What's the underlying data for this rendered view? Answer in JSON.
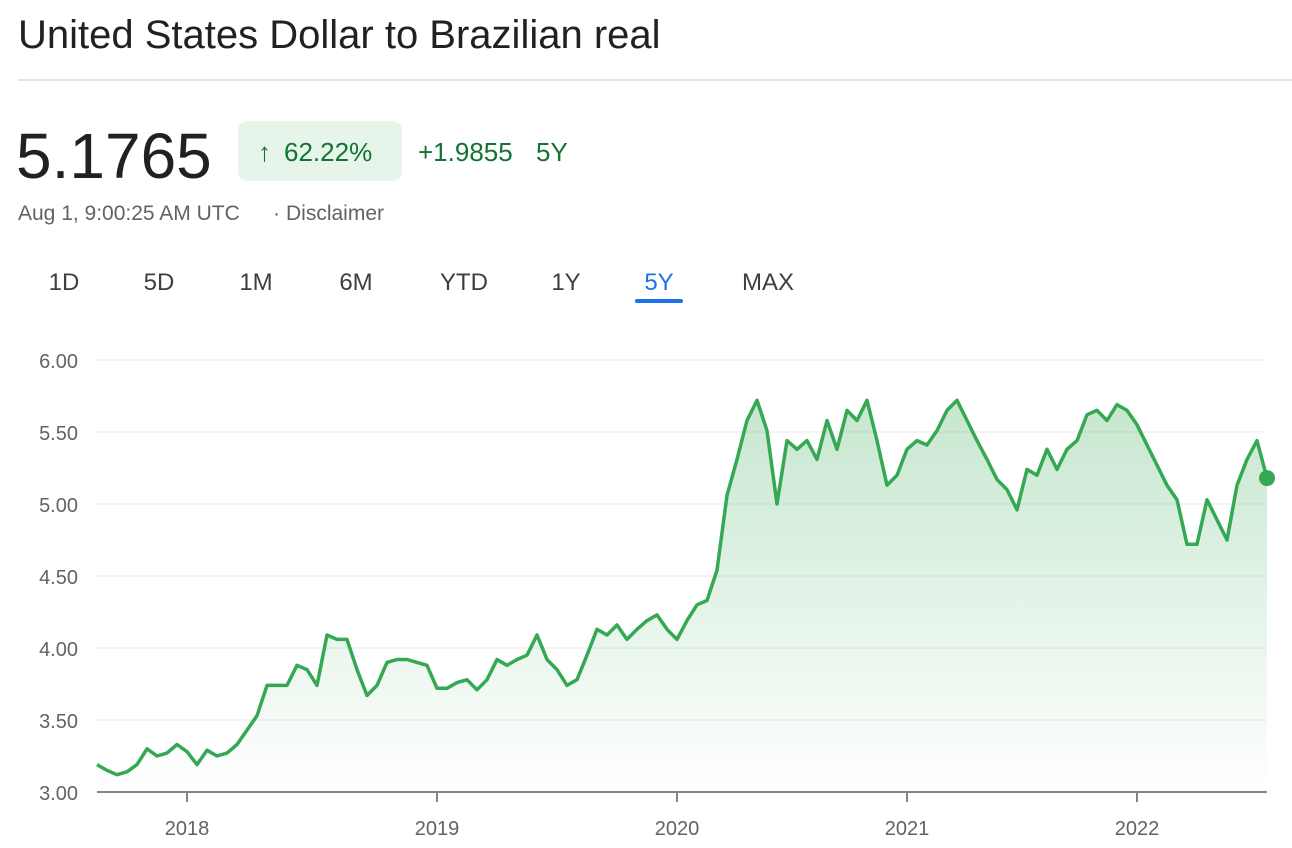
{
  "header": {
    "title": "United States Dollar to Brazilian real",
    "price": "5.1765",
    "change_percent": "62.22%",
    "change_value": "+1.9855",
    "change_period": "5Y",
    "timestamp": "Aug 1, 9:00:25 AM UTC",
    "disclaimer": "Disclaimer"
  },
  "tabs": {
    "items": [
      "1D",
      "5D",
      "1M",
      "6M",
      "YTD",
      "1Y",
      "5Y",
      "MAX"
    ],
    "active": 6
  },
  "chart_data": {
    "type": "line",
    "color": "#34a853",
    "grid": true,
    "categories": [
      null,
      null,
      null,
      null,
      null,
      null,
      null,
      null,
      null,
      "2018",
      null,
      null,
      null,
      null,
      null,
      null,
      null,
      null,
      null,
      null,
      null,
      null,
      null,
      null,
      null,
      null,
      null,
      null,
      null,
      null,
      null,
      null,
      null,
      null,
      "2019",
      null,
      null,
      null,
      null,
      null,
      null,
      null,
      null,
      null,
      null,
      null,
      null,
      null,
      null,
      null,
      null,
      null,
      null,
      null,
      null,
      null,
      null,
      null,
      "2020",
      null,
      null,
      null,
      null,
      null,
      null,
      null,
      null,
      null,
      null,
      null,
      null,
      null,
      null,
      null,
      null,
      null,
      null,
      null,
      null,
      null,
      null,
      "2021",
      null,
      null,
      null,
      null,
      null,
      null,
      null,
      null,
      null,
      null,
      null,
      null,
      null,
      null,
      null,
      null,
      null,
      null,
      null,
      null,
      null,
      null,
      "2022",
      null,
      null,
      null,
      null,
      null,
      null,
      null,
      null,
      null,
      null,
      null,
      null,
      null
    ],
    "values": [
      3.19,
      3.15,
      3.12,
      3.14,
      3.19,
      3.3,
      3.25,
      3.27,
      3.33,
      3.28,
      3.19,
      3.29,
      3.25,
      3.27,
      3.33,
      3.43,
      3.53,
      3.74,
      3.74,
      3.74,
      3.88,
      3.85,
      3.74,
      4.09,
      4.06,
      4.06,
      3.85,
      3.67,
      3.74,
      3.9,
      3.92,
      3.92,
      3.9,
      3.88,
      3.72,
      3.72,
      3.76,
      3.78,
      3.71,
      3.78,
      3.92,
      3.88,
      3.92,
      3.95,
      4.09,
      3.92,
      3.85,
      3.74,
      3.78,
      3.95,
      4.13,
      4.09,
      4.16,
      4.06,
      4.13,
      4.19,
      4.23,
      4.13,
      4.06,
      4.19,
      4.3,
      4.33,
      4.54,
      5.06,
      5.31,
      5.58,
      5.72,
      5.51,
      5.0,
      5.44,
      5.38,
      5.44,
      5.31,
      5.58,
      5.38,
      5.65,
      5.58,
      5.72,
      5.44,
      5.13,
      5.2,
      5.38,
      5.44,
      5.41,
      5.51,
      5.65,
      5.72,
      5.58,
      5.44,
      5.31,
      5.17,
      5.1,
      4.96,
      5.24,
      5.2,
      5.38,
      5.24,
      5.38,
      5.44,
      5.62,
      5.65,
      5.58,
      5.69,
      5.65,
      5.55,
      5.41,
      5.27,
      5.13,
      5.03,
      4.72,
      4.72,
      5.03,
      4.89,
      4.75,
      5.13,
      5.31,
      5.44,
      5.18
    ],
    "ylim": [
      3,
      6
    ],
    "yticks": [
      {
        "value": 3,
        "label": "3.00"
      },
      {
        "value": 3.5,
        "label": "3.50"
      },
      {
        "value": 4,
        "label": "4.00"
      },
      {
        "value": 4.5,
        "label": "4.50"
      },
      {
        "value": 5,
        "label": "5.00"
      },
      {
        "value": 5.5,
        "label": "5.50"
      },
      {
        "value": 6,
        "label": "6.00"
      }
    ]
  }
}
